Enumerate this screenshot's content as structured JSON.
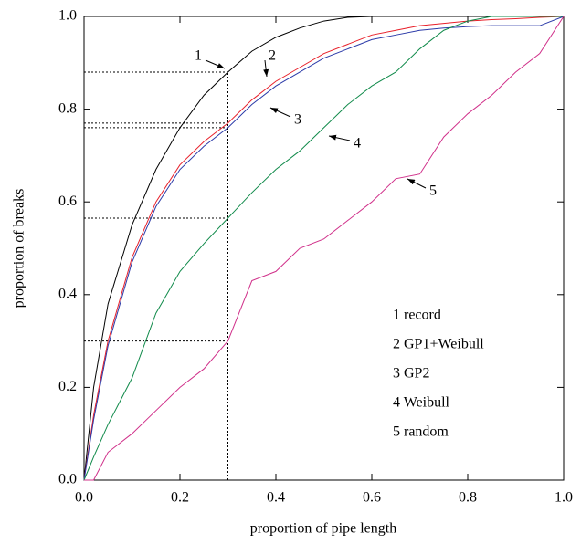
{
  "chart_data": {
    "type": "line",
    "x_label": "proportion of pipe length",
    "y_label": "proportion of breaks",
    "x": [
      0,
      0.02,
      0.05,
      0.1,
      0.15,
      0.2,
      0.25,
      0.3,
      0.35,
      0.4,
      0.45,
      0.5,
      0.55,
      0.6,
      0.65,
      0.7,
      0.75,
      0.8,
      0.85,
      0.9,
      0.95,
      1.0
    ],
    "series": [
      {
        "name": "1 record",
        "color": "#000000",
        "values": [
          0,
          0.2,
          0.38,
          0.55,
          0.67,
          0.76,
          0.83,
          0.88,
          0.925,
          0.955,
          0.975,
          0.99,
          0.998,
          1,
          1,
          1,
          1,
          1,
          1,
          1,
          1,
          1
        ]
      },
      {
        "name": "2 GP1+Weibull",
        "color": "#e8202a",
        "values": [
          0,
          0.14,
          0.3,
          0.48,
          0.6,
          0.68,
          0.73,
          0.77,
          0.82,
          0.86,
          0.89,
          0.92,
          0.94,
          0.96,
          0.97,
          0.98,
          0.985,
          0.99,
          0.993,
          0.995,
          0.998,
          1
        ]
      },
      {
        "name": "3 GP2",
        "color": "#2b3aa8",
        "values": [
          0,
          0.13,
          0.29,
          0.47,
          0.59,
          0.67,
          0.72,
          0.76,
          0.81,
          0.85,
          0.88,
          0.91,
          0.93,
          0.95,
          0.96,
          0.97,
          0.975,
          0.978,
          0.98,
          0.98,
          0.98,
          1
        ]
      },
      {
        "name": "4 Weibull",
        "color": "#108a4a",
        "values": [
          0,
          0.05,
          0.12,
          0.22,
          0.36,
          0.45,
          0.51,
          0.565,
          0.62,
          0.67,
          0.71,
          0.76,
          0.81,
          0.85,
          0.88,
          0.93,
          0.97,
          0.99,
          1,
          1,
          1,
          1
        ]
      },
      {
        "name": "5 random",
        "color": "#d0308a",
        "values": [
          0,
          0,
          0.06,
          0.1,
          0.15,
          0.2,
          0.24,
          0.3,
          0.43,
          0.45,
          0.5,
          0.52,
          0.56,
          0.6,
          0.65,
          0.66,
          0.74,
          0.79,
          0.83,
          0.88,
          0.92,
          1
        ]
      }
    ],
    "curve_labels": [
      "1",
      "2",
      "3",
      "4",
      "5"
    ],
    "reference_x": 0.3,
    "xlim": [
      0,
      1
    ],
    "ylim": [
      0,
      1
    ],
    "xticks": [
      {
        "value": 0,
        "label": "0.0"
      },
      0.2,
      0.4,
      0.6,
      0.8,
      {
        "value": 1,
        "label": "1.0"
      }
    ],
    "yticks": [
      {
        "value": 0,
        "label": "0.0"
      },
      0.2,
      0.4,
      0.6,
      0.8,
      {
        "value": 1,
        "label": "1.0"
      }
    ]
  }
}
